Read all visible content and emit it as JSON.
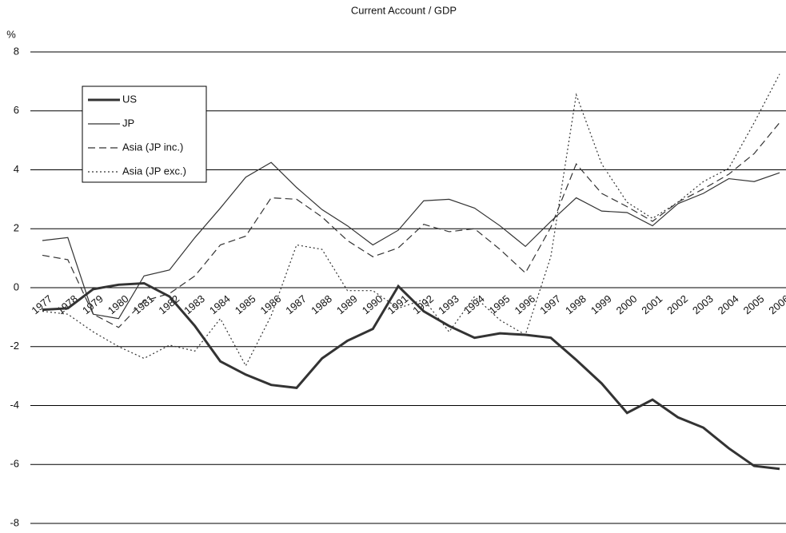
{
  "chart_data": {
    "type": "line",
    "title": "Current Account / GDP",
    "y_label": "%",
    "categories": [
      "1977",
      "1978",
      "1979",
      "1980",
      "1981",
      "1982",
      "1983",
      "1984",
      "1985",
      "1986",
      "1987",
      "1988",
      "1989",
      "1990",
      "1991",
      "1992",
      "1993",
      "1994",
      "1995",
      "1996",
      "1997",
      "1998",
      "1999",
      "2000",
      "2001",
      "2002",
      "2003",
      "2004",
      "2005",
      "2006"
    ],
    "series": [
      {
        "name": "US",
        "color": "#333333",
        "line_width": 3,
        "dash": "none",
        "values": [
          -0.75,
          -0.7,
          -0.05,
          0.1,
          0.15,
          -0.3,
          -1.3,
          -2.5,
          -2.95,
          -3.3,
          -3.4,
          -2.4,
          -1.8,
          -1.4,
          0.05,
          -0.8,
          -1.3,
          -1.7,
          -1.55,
          -1.6,
          -1.7,
          -2.45,
          -3.25,
          -4.25,
          -3.8,
          -4.4,
          -4.75,
          -5.45,
          -6.05,
          -6.15
        ]
      },
      {
        "name": "JP",
        "color": "#333333",
        "line_width": 1.2,
        "dash": "none",
        "values": [
          1.6,
          1.7,
          -0.9,
          -1.05,
          0.4,
          0.6,
          1.7,
          2.7,
          3.75,
          4.25,
          3.4,
          2.65,
          2.1,
          1.45,
          1.95,
          2.95,
          3.0,
          2.7,
          2.1,
          1.4,
          2.25,
          3.05,
          2.6,
          2.55,
          2.1,
          2.85,
          3.2,
          3.7,
          3.6,
          3.9
        ]
      },
      {
        "name": "Asia (JP inc.)",
        "color": "#333333",
        "line_width": 1.2,
        "dash": "9 5",
        "values": [
          1.1,
          0.95,
          -0.9,
          -1.35,
          -0.45,
          -0.2,
          0.4,
          1.45,
          1.75,
          3.05,
          3.0,
          2.4,
          1.6,
          1.05,
          1.35,
          2.15,
          1.9,
          2.0,
          1.3,
          0.5,
          2.05,
          4.2,
          3.2,
          2.75,
          2.25,
          2.9,
          3.35,
          3.85,
          4.55,
          5.6
        ]
      },
      {
        "name": "Asia (JP exc.)",
        "color": "#333333",
        "line_width": 1.2,
        "dash": "2 3",
        "values": [
          -0.8,
          -0.9,
          -1.5,
          -2.0,
          -2.4,
          -1.95,
          -2.15,
          -1.05,
          -2.65,
          -0.95,
          1.45,
          1.3,
          -0.1,
          -0.1,
          -0.7,
          -0.4,
          -1.5,
          -0.3,
          -1.1,
          -1.6,
          1.05,
          6.55,
          4.2,
          2.9,
          2.35,
          2.9,
          3.6,
          4.05,
          5.6,
          7.25
        ]
      }
    ],
    "ylim": [
      -8,
      8
    ],
    "yticks": [
      -8,
      -6,
      -4,
      -2,
      0,
      2,
      4,
      6,
      8
    ],
    "grid": true,
    "legend": "upper left"
  }
}
